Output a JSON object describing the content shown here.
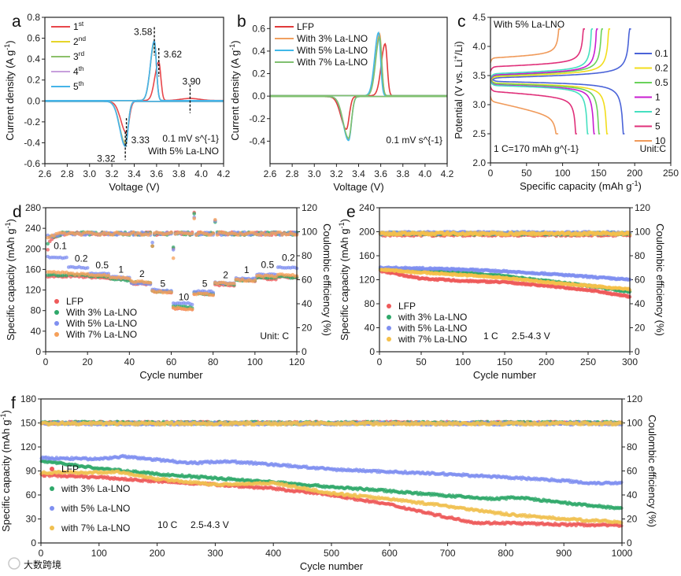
{
  "watermark": "大数跨境",
  "chart_data": [
    {
      "id": "a",
      "panel_letter": "a",
      "type": "line",
      "xlabel": "Voltage (V)",
      "ylabel": "Current density (A g^{-1})",
      "xlim": [
        2.6,
        4.2
      ],
      "ylim": [
        -0.6,
        0.8
      ],
      "x_ticks": [
        2.6,
        2.8,
        3.0,
        3.2,
        3.4,
        3.6,
        3.8,
        4.0,
        4.2
      ],
      "y_ticks": [
        -0.6,
        -0.4,
        -0.2,
        0.0,
        0.2,
        0.4,
        0.6,
        0.8
      ],
      "series": [
        {
          "name": "1",
          "sup": "st",
          "color": "#e8474b",
          "anodic": {
            "V": 3.62,
            "I": 0.37
          },
          "cathodic": {
            "V": 3.33,
            "I": -0.3
          },
          "minor": {
            "V": 3.9,
            "I": 0.02
          }
        },
        {
          "name": "2",
          "sup": "nd",
          "color": "#e6d52a",
          "anodic": {
            "V": 3.58,
            "I": 0.55
          },
          "cathodic": {
            "V": 3.32,
            "I": -0.4
          }
        },
        {
          "name": "3",
          "sup": "rd",
          "color": "#8cc06a",
          "anodic": {
            "V": 3.58,
            "I": 0.56
          },
          "cathodic": {
            "V": 3.32,
            "I": -0.41
          }
        },
        {
          "name": "4",
          "sup": "th",
          "color": "#c79fdc",
          "anodic": {
            "V": 3.58,
            "I": 0.57
          },
          "cathodic": {
            "V": 3.32,
            "I": -0.42
          }
        },
        {
          "name": "5",
          "sup": "th",
          "color": "#45b4e8",
          "anodic": {
            "V": 3.58,
            "I": 0.57
          },
          "cathodic": {
            "V": 3.32,
            "I": -0.43
          }
        }
      ],
      "peak_labels": [
        {
          "text": "3.58",
          "x": 3.58,
          "y": 0.57
        },
        {
          "text": "3.62",
          "x": 3.62,
          "y": 0.37
        },
        {
          "text": "3.90",
          "x": 3.9,
          "y": 0.02
        },
        {
          "text": "3.33",
          "x": 3.33,
          "y": -0.3
        },
        {
          "text": "3.32",
          "x": 3.32,
          "y": -0.43
        }
      ],
      "annotations": [
        "0.1 mV s^{-1}",
        "With 5% La-LNO"
      ]
    },
    {
      "id": "b",
      "panel_letter": "b",
      "type": "line",
      "xlabel": "Voltage (V)",
      "ylabel": "Current density (A g^{-1})",
      "xlim": [
        2.6,
        4.2
      ],
      "ylim": [
        -0.6,
        0.7
      ],
      "x_ticks": [
        2.6,
        2.8,
        3.0,
        3.2,
        3.4,
        3.6,
        3.8,
        4.0,
        4.2
      ],
      "y_ticks": [
        -0.4,
        -0.2,
        0.0,
        0.2,
        0.4,
        0.6
      ],
      "series": [
        {
          "name": "LFP",
          "color": "#e03a3a",
          "anodic": {
            "V": 3.64,
            "I": 0.46
          },
          "cathodic": {
            "V": 3.29,
            "I": -0.29
          }
        },
        {
          "name": "With 3% La-LNO",
          "color": "#f0a060",
          "anodic": {
            "V": 3.59,
            "I": 0.55
          },
          "cathodic": {
            "V": 3.31,
            "I": -0.38
          }
        },
        {
          "name": "With 5% La-LNO",
          "color": "#40b8e8",
          "anodic": {
            "V": 3.58,
            "I": 0.56
          },
          "cathodic": {
            "V": 3.31,
            "I": -0.39
          }
        },
        {
          "name": "With 7% La-LNO",
          "color": "#80c070",
          "anodic": {
            "V": 3.59,
            "I": 0.52
          },
          "cathodic": {
            "V": 3.31,
            "I": -0.37
          }
        }
      ],
      "annotations": [
        "0.1 mV s^{-1}"
      ]
    },
    {
      "id": "c",
      "panel_letter": "c",
      "type": "line",
      "xlabel": "Specific capacity (mAh g^{-1})",
      "ylabel": "Potential (V vs. Li^{+}/Li)",
      "xlim": [
        0,
        250
      ],
      "ylim": [
        2.0,
        4.5
      ],
      "x_ticks": [
        0,
        50,
        100,
        150,
        200,
        250
      ],
      "y_ticks": [
        2.0,
        2.5,
        3.0,
        3.5,
        4.0,
        4.5
      ],
      "voltage_window": [
        2.5,
        4.3
      ],
      "series": [
        {
          "name": "0.1",
          "color": "#4a63d8",
          "charge_plateau": 3.46,
          "charge_capacity": 195,
          "discharge_plateau": 3.4,
          "discharge_capacity": 186
        },
        {
          "name": "0.2",
          "color": "#f2dd1c",
          "charge_plateau": 3.48,
          "charge_capacity": 166,
          "discharge_plateau": 3.37,
          "discharge_capacity": 163
        },
        {
          "name": "0.5",
          "color": "#6ad25a",
          "charge_plateau": 3.5,
          "charge_capacity": 156,
          "discharge_plateau": 3.36,
          "discharge_capacity": 152
        },
        {
          "name": "1",
          "color": "#c81ed0",
          "charge_plateau": 3.51,
          "charge_capacity": 149,
          "discharge_plateau": 3.34,
          "discharge_capacity": 145
        },
        {
          "name": "2",
          "color": "#45e0c0",
          "charge_plateau": 3.53,
          "charge_capacity": 142,
          "discharge_plateau": 3.33,
          "discharge_capacity": 136
        },
        {
          "name": "5",
          "color": "#e0307a",
          "charge_plateau": 3.65,
          "charge_capacity": 131,
          "discharge_plateau": 3.23,
          "discharge_capacity": 120
        },
        {
          "name": "10",
          "color": "#f09a5a",
          "charge_plateau": 3.8,
          "charge_capacity": 97,
          "discharge_plateau": 3.06,
          "discharge_capacity": 94
        }
      ],
      "annotations": [
        "With 5% La-LNO",
        "1 C=170 mAh g^{-1}",
        "Unit:C"
      ]
    },
    {
      "id": "d",
      "panel_letter": "d",
      "type": "scatter",
      "xlabel": "Cycle number",
      "ylabel": "Specific capacity (mAh g^{-1})",
      "y2label": "Coulombic efficiency (%)",
      "xlim": [
        0,
        120
      ],
      "ylim": [
        0,
        280
      ],
      "y2lim": [
        0,
        120
      ],
      "x_ticks": [
        0,
        20,
        40,
        60,
        80,
        100,
        120
      ],
      "y_ticks": [
        0,
        40,
        80,
        120,
        160,
        200,
        240,
        280
      ],
      "y2_ticks": [
        0,
        20,
        40,
        60,
        80,
        100,
        120
      ],
      "cycles_per_rate": 10,
      "rates": [
        "0.1",
        "0.2",
        "0.5",
        "1",
        "2",
        "5",
        "10",
        "5",
        "2",
        "1",
        "0.5",
        "0.2"
      ],
      "rate_labels": [
        {
          "text": "0.1",
          "x": 7,
          "y": 200
        },
        {
          "text": "0.2",
          "x": 17,
          "y": 175
        },
        {
          "text": "0.5",
          "x": 27,
          "y": 162
        },
        {
          "text": "1",
          "x": 36,
          "y": 154
        },
        {
          "text": "2",
          "x": 46,
          "y": 145
        },
        {
          "text": "5",
          "x": 56,
          "y": 126
        },
        {
          "text": "10",
          "x": 66,
          "y": 100
        },
        {
          "text": "5",
          "x": 76,
          "y": 126
        },
        {
          "text": "2",
          "x": 86,
          "y": 143
        },
        {
          "text": "1",
          "x": 96,
          "y": 153
        },
        {
          "text": "0.5",
          "x": 106,
          "y": 163
        },
        {
          "text": "0.2",
          "x": 116,
          "y": 177
        }
      ],
      "series": [
        {
          "name": "LFP",
          "color": "#ee5a5a",
          "capacity_per_rate": [
            147,
            147,
            145,
            142,
            133,
            118,
            85,
            113,
            130,
            140,
            143,
            146
          ]
        },
        {
          "name": "With 3% La-LNO",
          "color": "#2fa86a",
          "capacity_per_rate": [
            150,
            150,
            147,
            141,
            135,
            118,
            88,
            114,
            133,
            140,
            145,
            146
          ]
        },
        {
          "name": "With 5% La-LNO",
          "color": "#7f8ff0",
          "capacity_per_rate": [
            184,
            165,
            153,
            145,
            133,
            120,
            95,
            118,
            134,
            143,
            151,
            165
          ]
        },
        {
          "name": "With 7% La-LNO",
          "color": "#f5a05a",
          "capacity_per_rate": [
            155,
            152,
            150,
            145,
            137,
            117,
            85,
            113,
            134,
            140,
            148,
            150
          ]
        }
      ],
      "ce_typical": 98.5,
      "ce_spikes": [
        {
          "cycle": 1,
          "values": [
            85,
            90,
            97,
            95
          ]
        },
        {
          "cycle": 51,
          "values": [
            88,
            88,
            91,
            88
          ]
        },
        {
          "cycle": 61,
          "values": [
            86,
            87,
            85,
            78
          ]
        },
        {
          "cycle": 71,
          "values": [
            116,
            115,
            112,
            111
          ]
        },
        {
          "cycle": 81,
          "values": [
            109,
            108,
            109,
            110
          ]
        }
      ],
      "annotations": [
        "Unit: C"
      ]
    },
    {
      "id": "e",
      "panel_letter": "e",
      "type": "scatter",
      "xlabel": "Cycle number",
      "ylabel": "Specific capacity (mAh g^{-1})",
      "y2label": "Coulombic efficiency (%)",
      "xlim": [
        0,
        300
      ],
      "ylim": [
        0,
        240
      ],
      "y2lim": [
        0,
        120
      ],
      "x_ticks": [
        0,
        50,
        100,
        150,
        200,
        250,
        300
      ],
      "y_ticks": [
        0,
        40,
        80,
        120,
        160,
        200,
        240
      ],
      "y2_ticks": [
        0,
        20,
        40,
        60,
        80,
        100,
        120
      ],
      "x": [
        0,
        50,
        100,
        150,
        200,
        250,
        300
      ],
      "series": [
        {
          "name": "LFP",
          "color": "#ee5a5a",
          "capacity": [
            135,
            122,
            118,
            116,
            110,
            103,
            92
          ],
          "ce": 97.5
        },
        {
          "name": "with 3% La-LNO",
          "color": "#2fa86a",
          "capacity": [
            138,
            136,
            132,
            126,
            118,
            110,
            100
          ],
          "ce": 98.5
        },
        {
          "name": "with 5% La-LNO",
          "color": "#7f8ff0",
          "capacity": [
            140,
            139,
            137,
            134,
            130,
            125,
            120
          ],
          "ce": 99.0
        },
        {
          "name": "with 7% La-LNO",
          "color": "#f5c04a",
          "capacity": [
            137,
            132,
            128,
            123,
            116,
            110,
            104
          ],
          "ce": 98.5
        }
      ],
      "annotations": [
        "1 C",
        "2.5-4.3 V"
      ]
    },
    {
      "id": "f",
      "panel_letter": "f",
      "type": "scatter",
      "xlabel": "Cycle number",
      "ylabel": "Specific capacity (mAh g^{-1})",
      "y2label": "Coulombic efficiency (%)",
      "xlim": [
        0,
        1000
      ],
      "ylim": [
        0,
        180
      ],
      "y2lim": [
        0,
        120
      ],
      "x_ticks": [
        0,
        100,
        200,
        300,
        400,
        500,
        600,
        700,
        800,
        900,
        1000
      ],
      "y_ticks": [
        0,
        30,
        60,
        90,
        120,
        150,
        180
      ],
      "y2_ticks": [
        0,
        20,
        40,
        60,
        80,
        100,
        120
      ],
      "series": [
        {
          "name": "LFP",
          "color": "#ee5a5a",
          "x": [
            0,
            100,
            200,
            300,
            400,
            500,
            600,
            700,
            750,
            800,
            900,
            1000
          ],
          "capacity": [
            85,
            82,
            77,
            73,
            68,
            60,
            48,
            32,
            25,
            25,
            23,
            22
          ],
          "ce": 100
        },
        {
          "name": "with 3% La-LNO",
          "color": "#2fa86a",
          "x": [
            0,
            100,
            200,
            300,
            400,
            500,
            600,
            700,
            780,
            820,
            900,
            1000
          ],
          "capacity": [
            103,
            93,
            86,
            81,
            76,
            70,
            65,
            59,
            55,
            57,
            50,
            43
          ],
          "ce": 100
        },
        {
          "name": "with 5% La-LNO",
          "color": "#7f8ff0",
          "x": [
            0,
            100,
            140,
            200,
            260,
            320,
            400,
            500,
            600,
            700,
            800,
            900,
            940,
            1000
          ],
          "capacity": [
            106,
            105,
            108,
            104,
            100,
            102,
            98,
            92,
            89,
            86,
            82,
            78,
            75,
            75
          ],
          "ce": 99.5
        },
        {
          "name": "with 7% La-LNO",
          "color": "#f0c050",
          "x": [
            0,
            100,
            130,
            200,
            300,
            400,
            500,
            600,
            700,
            800,
            900,
            1000
          ],
          "capacity": [
            88,
            88,
            89,
            80,
            73,
            75,
            62,
            55,
            46,
            36,
            30,
            26
          ],
          "ce": 99.5
        }
      ],
      "annotations": [
        "10 C",
        "2.5-4.3 V"
      ]
    }
  ]
}
